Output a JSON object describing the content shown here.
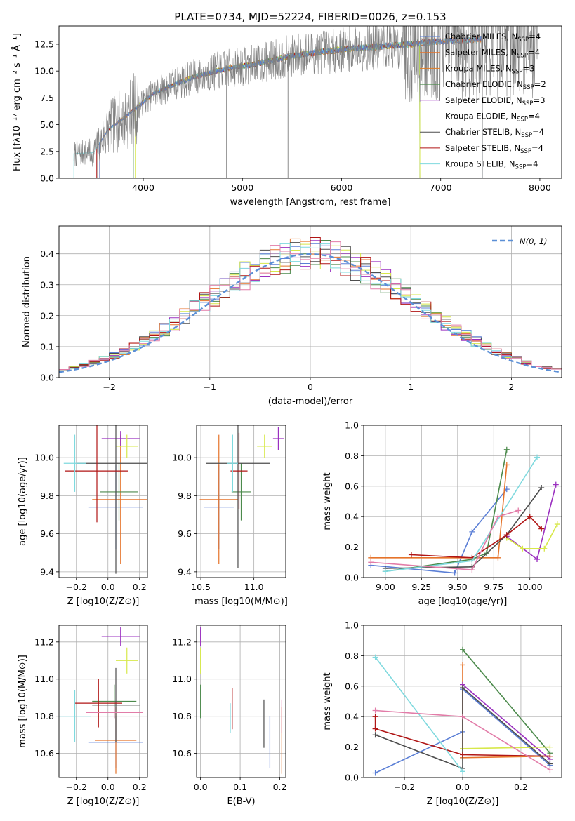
{
  "figure": {
    "title": "PLATE=0734, MJD=52224, FIBERID=0026, z=0.153",
    "colors": {
      "Chabrier MILES": "#5b7fd6",
      "Salpeter MILES": "#e5732a",
      "Kroupa MILES": "#e07b22",
      "Chabrier ELODIE": "#4c8a4c",
      "Salpeter ELODIE": "#9b30c0",
      "Kroupa ELODIE": "#d7e84a",
      "Chabrier STELIB": "#4d4d4d",
      "Salpeter STELIB": "#b01515",
      "Kroupa STELIB": "#7fd9de",
      "data": "#808080",
      "pink": "#e27ca8"
    }
  },
  "chart_data": [
    {
      "id": "spectrum",
      "type": "line",
      "xlabel": "wavelength [Angstrom, rest frame]",
      "ylabel": "Flux [fλ10⁻¹⁷ erg cm⁻² s⁻¹ Å⁻¹]",
      "xlim": [
        3150,
        8220
      ],
      "ylim": [
        0,
        14.2
      ],
      "xticks": [
        4000,
        5000,
        6000,
        7000,
        8000
      ],
      "yticks": [
        0.0,
        2.5,
        5.0,
        7.5,
        10.0,
        12.5
      ],
      "spectrum_trend": [
        [
          3300,
          2.3
        ],
        [
          3500,
          2.4
        ],
        [
          3650,
          4.6
        ],
        [
          3800,
          5.6
        ],
        [
          3950,
          6.7
        ],
        [
          4100,
          7.9
        ],
        [
          4300,
          8.7
        ],
        [
          4500,
          9.4
        ],
        [
          4700,
          9.9
        ],
        [
          4900,
          10.3
        ],
        [
          5100,
          10.6
        ],
        [
          5300,
          11.0
        ],
        [
          5500,
          11.4
        ],
        [
          5800,
          11.8
        ],
        [
          6100,
          12.1
        ],
        [
          6400,
          12.3
        ],
        [
          6700,
          12.5
        ],
        [
          7000,
          12.8
        ],
        [
          7300,
          12.9
        ],
        [
          7600,
          13.0
        ],
        [
          7900,
          13.4
        ]
      ],
      "legend": {
        "placement": "upper right",
        "entries": [
          {
            "name": "Chabrier MILES, N",
            "sub": "SSP",
            "eq": "=4"
          },
          {
            "name": "Salpeter MILES, N",
            "sub": "SSP",
            "eq": "=4"
          },
          {
            "name": "Kroupa MILES, N",
            "sub": "SSP",
            "eq": "=3"
          },
          {
            "name": "Chabrier ELODIE, N",
            "sub": "SSP",
            "eq": "=2"
          },
          {
            "name": "Salpeter ELODIE, N",
            "sub": "SSP",
            "eq": "=3"
          },
          {
            "name": "Kroupa ELODIE, N",
            "sub": "SSP",
            "eq": "=4"
          },
          {
            "name": "Chabrier STELIB, N",
            "sub": "SSP",
            "eq": "=4"
          },
          {
            "name": "Salpeter STELIB, N",
            "sub": "SSP",
            "eq": "=4"
          },
          {
            "name": "Kroupa STELIB, N",
            "sub": "SSP",
            "eq": "=4"
          }
        ]
      }
    },
    {
      "id": "residuals",
      "type": "area",
      "xlabel": "(data-model)/error",
      "ylabel": "Normed distribution",
      "xlim": [
        -2.5,
        2.5
      ],
      "ylim": [
        0,
        0.49
      ],
      "xticks": [
        -2,
        -1,
        0,
        1,
        2
      ],
      "yticks": [
        0.0,
        0.1,
        0.2,
        0.3,
        0.4
      ],
      "grid": true,
      "legend": {
        "placement": "upper right",
        "label": "N(0, 1)"
      }
    },
    {
      "id": "age_vs_Z",
      "type": "scatter",
      "xlabel": "Z [log10(Z/Z⊙)]",
      "ylabel": "age [log10(age/yr)]",
      "xlim": [
        -0.31,
        0.25
      ],
      "ylim": [
        9.37,
        10.17
      ],
      "xticks": [
        -0.2,
        0.0,
        0.2
      ],
      "yticks": [
        9.4,
        9.6,
        9.8,
        10.0
      ],
      "grid": true,
      "points": [
        {
          "model": "Chabrier MILES",
          "x": 0.05,
          "y": 9.74,
          "xerr": 0.17,
          "yerr": 0.22
        },
        {
          "model": "Salpeter MILES",
          "x": 0.08,
          "y": 9.78,
          "xerr": 0.18,
          "yerr": 0.34
        },
        {
          "model": "Chabrier ELODIE",
          "x": 0.07,
          "y": 9.82,
          "xerr": 0.12,
          "yerr": 0.15
        },
        {
          "model": "Salpeter ELODIE",
          "x": 0.08,
          "y": 10.1,
          "xerr": 0.12,
          "yerr": 0.04
        },
        {
          "model": "Kroupa ELODIE",
          "x": 0.12,
          "y": 10.06,
          "xerr": 0.07,
          "yerr": 0.06
        },
        {
          "model": "Chabrier STELIB",
          "x": 0.05,
          "y": 9.97,
          "xerr": 0.25,
          "yerr": 0.58
        },
        {
          "model": "Salpeter STELIB",
          "x": -0.07,
          "y": 9.93,
          "xerr": 0.2,
          "yerr": 0.27
        },
        {
          "model": "Kroupa STELIB",
          "x": -0.21,
          "y": 9.97,
          "xerr": 0.07,
          "yerr": 0.15
        }
      ]
    },
    {
      "id": "age_vs_mass",
      "type": "scatter",
      "xlabel": "mass [log10(M/M⊙)]",
      "ylabel": "",
      "xlim": [
        10.46,
        11.3
      ],
      "ylim": [
        9.37,
        10.17
      ],
      "xticks": [
        10.5,
        11.0
      ],
      "yticks": [
        9.4,
        9.6,
        9.8,
        10.0
      ],
      "grid": true,
      "points": [
        {
          "model": "Chabrier MILES",
          "x": 10.67,
          "y": 9.74,
          "xerr": 0.14,
          "yerr": 0.22
        },
        {
          "model": "Salpeter MILES",
          "x": 10.67,
          "y": 9.78,
          "xerr": 0.18,
          "yerr": 0.34
        },
        {
          "model": "Chabrier ELODIE",
          "x": 10.88,
          "y": 9.82,
          "xerr": 0.09,
          "yerr": 0.15
        },
        {
          "model": "Salpeter ELODIE",
          "x": 11.23,
          "y": 10.1,
          "xerr": 0.05,
          "yerr": 0.06
        },
        {
          "model": "Kroupa ELODIE",
          "x": 11.1,
          "y": 10.06,
          "xerr": 0.07,
          "yerr": 0.06
        },
        {
          "model": "Chabrier STELIB",
          "x": 10.85,
          "y": 9.97,
          "xerr": 0.3,
          "yerr": 0.55
        },
        {
          "model": "Salpeter STELIB",
          "x": 10.86,
          "y": 9.93,
          "xerr": 0.08,
          "yerr": 0.2
        },
        {
          "model": "Kroupa STELIB",
          "x": 10.8,
          "y": 9.97,
          "xerr": 0.05,
          "yerr": 0.15
        }
      ]
    },
    {
      "id": "weight_vs_age",
      "type": "line",
      "xlabel": "age [log10(age/yr)]",
      "ylabel": "mass weight",
      "xlim": [
        8.85,
        10.22
      ],
      "ylim": [
        0,
        1.0
      ],
      "xticks": [
        9.0,
        9.25,
        9.5,
        9.75,
        10.0
      ],
      "yticks": [
        0.0,
        0.2,
        0.4,
        0.6,
        0.8,
        1.0
      ],
      "grid": true,
      "series": [
        {
          "model": "Chabrier MILES",
          "x": [
            8.9,
            9.48,
            9.6,
            9.84
          ],
          "y": [
            0.08,
            0.03,
            0.3,
            0.58
          ]
        },
        {
          "model": "Salpeter MILES",
          "x": [
            8.9,
            9.78,
            9.84
          ],
          "y": [
            0.13,
            0.13,
            0.74
          ]
        },
        {
          "model": "Chabrier ELODIE",
          "x": [
            9.0,
            9.6,
            9.7,
            9.84
          ],
          "y": [
            0.04,
            0.12,
            0.16,
            0.84
          ]
        },
        {
          "model": "Salpeter ELODIE",
          "x": [
            9.84,
            10.05,
            10.18
          ],
          "y": [
            0.27,
            0.12,
            0.61
          ]
        },
        {
          "model": "Kroupa ELODIE",
          "x": [
            9.84,
            9.95,
            10.1,
            10.19
          ],
          "y": [
            0.26,
            0.19,
            0.19,
            0.35
          ]
        },
        {
          "model": "Chabrier STELIB",
          "x": [
            9.0,
            9.6,
            9.84,
            10.08
          ],
          "y": [
            0.06,
            0.07,
            0.28,
            0.59
          ]
        },
        {
          "model": "Salpeter STELIB",
          "x": [
            9.18,
            9.6,
            9.84,
            10.0,
            10.08
          ],
          "y": [
            0.15,
            0.13,
            0.28,
            0.4,
            0.32
          ]
        },
        {
          "model": "Kroupa STELIB",
          "x": [
            9.0,
            9.6,
            10.05
          ],
          "y": [
            0.04,
            0.11,
            0.79
          ]
        },
        {
          "model": "pink",
          "x": [
            8.9,
            9.6,
            9.78,
            9.92
          ],
          "y": [
            0.1,
            0.05,
            0.4,
            0.44
          ]
        }
      ]
    },
    {
      "id": "mass_vs_Z",
      "type": "scatter",
      "xlabel": "Z [log10(Z/Z⊙)]",
      "ylabel": "mass [log10(M/M⊙)]",
      "xlim": [
        -0.31,
        0.25
      ],
      "ylim": [
        10.47,
        11.29
      ],
      "xticks": [
        -0.2,
        0.0,
        0.2
      ],
      "yticks": [
        10.6,
        10.8,
        11.0,
        11.2
      ],
      "grid": true,
      "points": [
        {
          "model": "Chabrier MILES",
          "x": 0.05,
          "y": 10.66,
          "xerr": 0.17,
          "yerr": 0.14
        },
        {
          "model": "Salpeter MILES",
          "x": 0.05,
          "y": 10.67,
          "xerr": 0.13,
          "yerr": 0.18
        },
        {
          "model": "Chabrier ELODIE",
          "x": 0.04,
          "y": 10.88,
          "xerr": 0.14,
          "yerr": 0.09
        },
        {
          "model": "Salpeter ELODIE",
          "x": 0.08,
          "y": 11.23,
          "xerr": 0.12,
          "yerr": 0.05
        },
        {
          "model": "Kroupa ELODIE",
          "x": 0.12,
          "y": 11.1,
          "xerr": 0.07,
          "yerr": 0.07
        },
        {
          "model": "Chabrier STELIB",
          "x": 0.05,
          "y": 10.86,
          "xerr": 0.15,
          "yerr": 0.2
        },
        {
          "model": "Salpeter STELIB",
          "x": -0.06,
          "y": 10.87,
          "xerr": 0.15,
          "yerr": 0.13
        },
        {
          "model": "Kroupa STELIB",
          "x": -0.21,
          "y": 10.8,
          "xerr": 0.1,
          "yerr": 0.14
        },
        {
          "model": "pink",
          "x": 0.04,
          "y": 10.82,
          "xerr": 0.18,
          "yerr": 0.03
        }
      ]
    },
    {
      "id": "mass_vs_EBV",
      "type": "scatter",
      "xlabel": "E(B-V)",
      "ylabel": "",
      "xlim": [
        -0.01,
        0.215
      ],
      "ylim": [
        10.47,
        11.29
      ],
      "xticks": [
        0.0,
        0.1,
        0.2
      ],
      "yticks": [
        10.6,
        10.8,
        11.0,
        11.2
      ],
      "grid": true,
      "points": [
        {
          "model": "Chabrier MILES",
          "x": 0.175,
          "y": 10.66,
          "yerr": 0.14
        },
        {
          "model": "Salpeter MILES",
          "x": 0.205,
          "y": 10.67,
          "yerr": 0.18
        },
        {
          "model": "Chabrier ELODIE",
          "x": 0.0,
          "y": 10.88,
          "yerr": 0.09
        },
        {
          "model": "Salpeter ELODIE",
          "x": 0.0,
          "y": 11.23,
          "yerr": 0.05
        },
        {
          "model": "Kroupa ELODIE",
          "x": 0.0,
          "y": 11.1,
          "yerr": 0.07
        },
        {
          "model": "Chabrier STELIB",
          "x": 0.16,
          "y": 10.76,
          "yerr": 0.13
        },
        {
          "model": "Salpeter STELIB",
          "x": 0.08,
          "y": 10.84,
          "yerr": 0.11
        },
        {
          "model": "Kroupa STELIB",
          "x": 0.075,
          "y": 10.79,
          "yerr": 0.08
        },
        {
          "model": "pink",
          "x": 0.205,
          "y": 10.8,
          "yerr": 0.09
        }
      ]
    },
    {
      "id": "weight_vs_Z",
      "type": "line",
      "xlabel": "Z [log10(Z/Z⊙)]",
      "ylabel": "mass weight",
      "xlim": [
        -0.34,
        0.34
      ],
      "ylim": [
        0,
        1.0
      ],
      "xticks": [
        -0.2,
        0.0,
        0.2
      ],
      "yticks": [
        0.0,
        0.2,
        0.4,
        0.6,
        0.8,
        1.0
      ],
      "grid": true,
      "series": [
        {
          "model": "Chabrier MILES",
          "x": [
            -0.3,
            0.0,
            0.0,
            0.3
          ],
          "y": [
            0.03,
            0.3,
            0.58,
            0.08
          ]
        },
        {
          "model": "Salpeter MILES",
          "x": [
            0.0,
            0.0,
            0.3
          ],
          "y": [
            0.74,
            0.13,
            0.14
          ]
        },
        {
          "model": "Chabrier ELODIE",
          "x": [
            0.0,
            0.3
          ],
          "y": [
            0.84,
            0.16
          ]
        },
        {
          "model": "Salpeter ELODIE",
          "x": [
            0.0,
            0.3
          ],
          "y": [
            0.61,
            0.12
          ]
        },
        {
          "model": "Kroupa ELODIE",
          "x": [
            0.0,
            0.3
          ],
          "y": [
            0.19,
            0.2
          ]
        },
        {
          "model": "Chabrier STELIB",
          "x": [
            -0.3,
            0.0,
            0.0,
            0.3
          ],
          "y": [
            0.28,
            0.06,
            0.59,
            0.09
          ]
        },
        {
          "model": "Salpeter STELIB",
          "x": [
            -0.3,
            -0.3,
            0.0,
            0.3
          ],
          "y": [
            0.4,
            0.32,
            0.15,
            0.14
          ]
        },
        {
          "model": "Kroupa STELIB",
          "x": [
            -0.3,
            0.0
          ],
          "y": [
            0.79,
            0.04
          ]
        },
        {
          "model": "pink",
          "x": [
            -0.3,
            0.0,
            0.3
          ],
          "y": [
            0.44,
            0.4,
            0.05
          ]
        }
      ]
    }
  ]
}
